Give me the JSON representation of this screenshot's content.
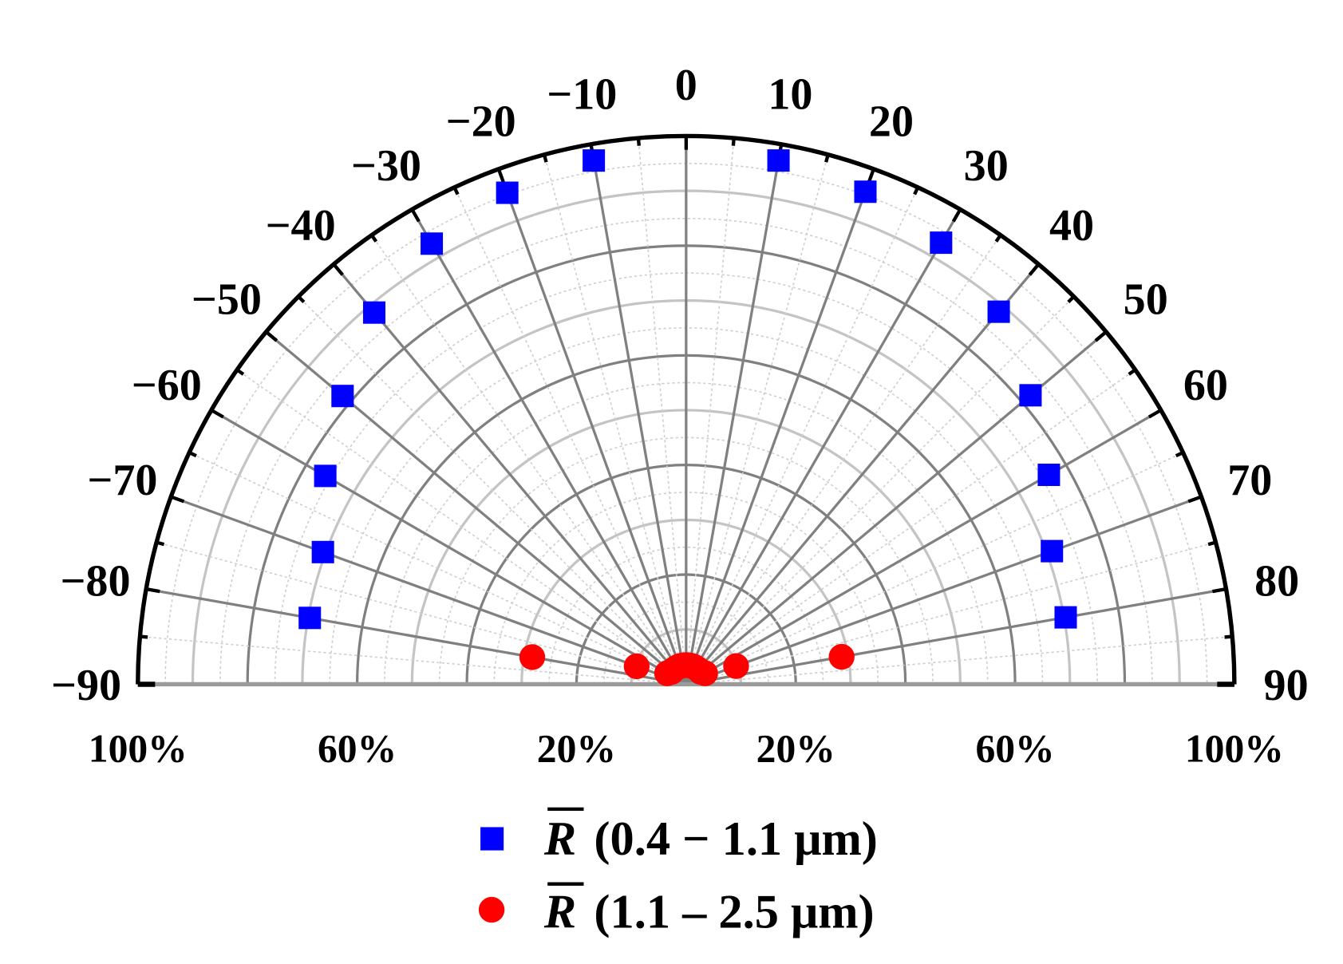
{
  "chart_data": {
    "type": "scatter",
    "subtype": "polar-half",
    "angle_range": [
      -90,
      90
    ],
    "angle_zero": "top",
    "angle_ticks": [
      -90,
      -80,
      -70,
      -60,
      -50,
      -40,
      -30,
      -20,
      -10,
      0,
      10,
      20,
      30,
      40,
      50,
      60,
      70,
      80,
      90
    ],
    "angle_tick_labels": [
      "−90",
      "−80",
      "−70",
      "−60",
      "−50",
      "−40",
      "−30",
      "−20",
      "−10",
      "0",
      "10",
      "20",
      "30",
      "40",
      "50",
      "60",
      "70",
      "80",
      "90"
    ],
    "radial_range": [
      0,
      100
    ],
    "radial_unit": "%",
    "radial_tick_labels": [
      "100%",
      "60%",
      "20%",
      "20%",
      "60%",
      "100%"
    ],
    "grid": true,
    "legend_position": "bottom",
    "series": [
      {
        "name": "R̄ (0.4 − 1.1 μm)",
        "name_symbol": "R",
        "name_text": "(0.4 − 1.1 μm)",
        "marker": "square",
        "color": "#0000ff",
        "angles": [
          -80,
          -70,
          -60,
          -50,
          -40,
          -30,
          -20,
          -10,
          10,
          20,
          30,
          40,
          50,
          60,
          70,
          80
        ],
        "values": [
          69.7,
          70.5,
          76,
          81.8,
          88.5,
          92.8,
          95.4,
          97,
          97,
          95.6,
          93,
          88.7,
          82,
          76.4,
          71,
          70.3
        ]
      },
      {
        "name": "R̄ (1.1 − 2.5 μm)",
        "name_symbol": "R",
        "name_text": "(1.1 – 2.5 μm)",
        "marker": "circle",
        "color": "#ff0000",
        "angles": [
          -80,
          -70,
          -60,
          -50,
          -40,
          -30,
          -20,
          -10,
          0,
          10,
          20,
          30,
          40,
          50,
          60,
          70,
          80
        ],
        "values": [
          28.5,
          9.6,
          4,
          3.5,
          3.5,
          3.5,
          3.5,
          3.5,
          3.5,
          3.5,
          3.5,
          3.5,
          3.5,
          3.5,
          4,
          9.7,
          28.8
        ]
      }
    ]
  }
}
